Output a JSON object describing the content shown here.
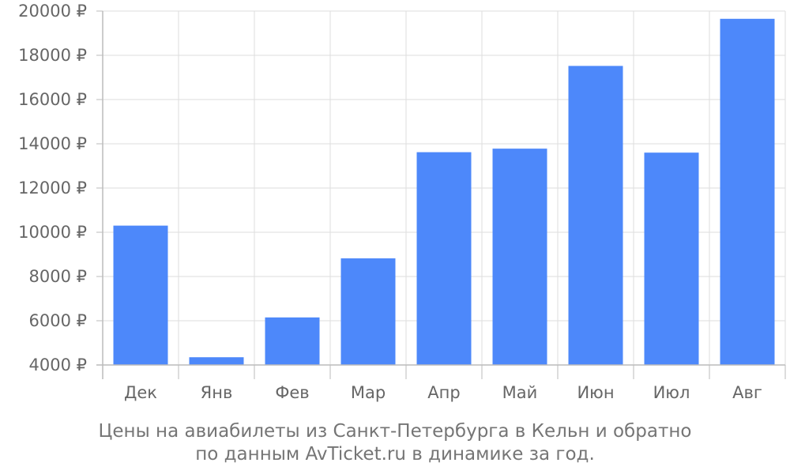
{
  "chart_data": {
    "type": "bar",
    "categories": [
      "Дек",
      "Янв",
      "Фев",
      "Мар",
      "Апр",
      "Май",
      "Июн",
      "Июл",
      "Авг"
    ],
    "values": [
      10300,
      4350,
      6150,
      8820,
      13620,
      13780,
      17520,
      13600,
      19650
    ],
    "y_ticks": [
      "4000 ₽",
      "6000 ₽",
      "8000 ₽",
      "10000 ₽",
      "12000 ₽",
      "14000 ₽",
      "16000 ₽",
      "18000 ₽",
      "20000 ₽"
    ],
    "ylim": [
      4000,
      20000
    ],
    "grid": true,
    "bar_color": "#4d88fa",
    "caption_line1": "Цены на авиабилеты из Санкт-Петербурга в Кельн и обратно",
    "caption_line2": "по данным AvTicket.ru в динамике за год."
  }
}
